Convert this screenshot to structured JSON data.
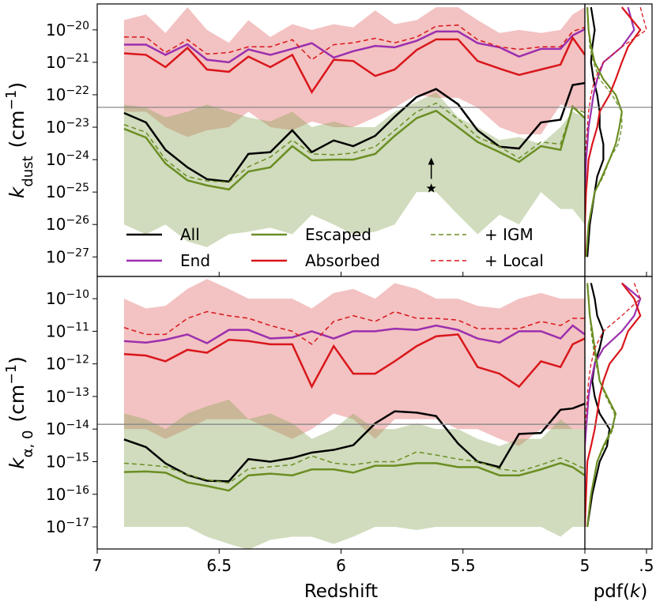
{
  "chart_data": {
    "type": "line",
    "x": [
      6.89,
      6.8,
      6.72,
      6.63,
      6.55,
      6.46,
      6.38,
      6.29,
      6.2,
      6.12,
      6.03,
      5.95,
      5.86,
      5.78,
      5.69,
      5.61,
      5.52,
      5.44,
      5.35,
      5.27,
      5.18,
      5.1,
      5.05,
      5.0
    ],
    "xlim": [
      7,
      5
    ],
    "xticks": [
      7,
      6.5,
      6,
      5.5,
      5
    ],
    "xlabel": "Redshift",
    "pdf_xlim": [
      0,
      0.545
    ],
    "pdf_xticks": [
      {
        "value": 0.5,
        "label": ".5"
      }
    ],
    "pdf_xlabel": "pdf(k)",
    "series": [
      {
        "name": "All",
        "color": "#000000",
        "dashed": false
      },
      {
        "name": "End",
        "color": "#9b2fae",
        "dashed": false
      },
      {
        "name": "Escaped",
        "color": "#6b8e23",
        "dashed": false
      },
      {
        "name": "Absorbed",
        "color": "#d9161b",
        "dashed": false
      },
      {
        "name": "+ IGM",
        "color": "#6b8e23",
        "dashed": true
      },
      {
        "name": "+ Local",
        "color": "#d9161b",
        "dashed": true
      }
    ],
    "bands": [
      {
        "color": "#e06666"
      },
      {
        "color": "#8aa85a"
      }
    ],
    "hline_color": "#888888",
    "panels": [
      {
        "ylabel": {
          "symbol": "k",
          "subscript": "dust",
          "unit": "(cm−1)"
        },
        "ylim": [
          2.5e-28,
          6.3e-20
        ],
        "yticks": [
          {
            "value": 1e-27,
            "label": "10−27"
          },
          {
            "value": 1e-26,
            "label": "10−26"
          },
          {
            "value": 1e-25,
            "label": "10−25"
          },
          {
            "value": 1e-24,
            "label": "10−24"
          },
          {
            "value": 1e-23,
            "label": "10−23"
          },
          {
            "value": 1e-22,
            "label": "10−22"
          },
          {
            "value": 1e-21,
            "label": "10−21"
          },
          {
            "value": 1e-20,
            "label": "10−20"
          }
        ],
        "hline": 4.1e-23,
        "limit_marker": {
          "x": 5.63,
          "y": 1.3e-25
        },
        "bands": [
          {
            "low": [
              3e-23,
              3e-23,
              1e-23,
              5e-24,
              8e-24,
              1e-23,
              3e-23,
              1e-23,
              8e-24,
              1.5e-23,
              1e-23,
              1e-23,
              2e-23,
              4e-23,
              1e-22,
              8e-23,
              8e-23,
              4e-23,
              1e-23,
              6e-24,
              6e-24,
              5e-23,
              4e-23,
              3e-23
            ],
            "high": [
              2e-20,
              3e-20,
              8e-21,
              5e-20,
              1e-20,
              4e-21,
              2e-20,
              6e-21,
              1.5e-20,
              1e-20,
              1.5e-20,
              1.2e-20,
              4e-20,
              1.5e-20,
              2e-20,
              5e-20,
              5e-20,
              2e-20,
              8e-21,
              1e-20,
              8e-21,
              1e-20,
              3e-20,
              5e-20
            ]
          },
          {
            "low": [
              1e-26,
              5e-27,
              1e-26,
              3e-27,
              2e-27,
              5e-27,
              6e-27,
              8e-27,
              5e-27,
              2e-26,
              1e-26,
              5e-27,
              6e-27,
              1e-26,
              1e-25,
              1e-25,
              2e-26,
              5e-27,
              2e-26,
              1e-26,
              1e-25,
              3e-26,
              3e-26,
              1e-26
            ],
            "high": [
              5e-23,
              4e-23,
              2e-23,
              3e-23,
              5e-23,
              3e-23,
              2e-23,
              1.5e-23,
              3e-23,
              1e-23,
              1.5e-23,
              1e-23,
              1e-23,
              3e-23,
              6e-23,
              1.2e-22,
              2e-23,
              1e-23,
              4e-24,
              5e-24,
              3e-24,
              1e-23,
              3e-23,
              2e-23
            ]
          }
        ],
        "pdf_k": [
          5e-20,
          1e-20,
          3e-21,
          1e-21,
          3e-22,
          1e-22,
          3e-23,
          1e-23,
          3e-24,
          1e-24,
          3e-25,
          1e-25,
          1e-26,
          1e-27
        ],
        "series": [
          {
            "values": [
              2.75e-23,
              1.4e-23,
              2e-24,
              5.8e-25,
              2.5e-25,
              2.1e-25,
              1.5e-24,
              1.7e-24,
              8e-24,
              1.7e-24,
              3.9e-24,
              2.6e-24,
              5.4e-24,
              2.1e-23,
              8.5e-23,
              1.5e-22,
              5.1e-23,
              8e-24,
              2.5e-24,
              2.2e-24,
              1.4e-23,
              1.7e-23,
              2e-22,
              2.3e-22
            ],
            "pdf": [
              0.05,
              0.08,
              0.06,
              0.05,
              0.07,
              0.1,
              0.12,
              0.12,
              0.15,
              0.15,
              0.1,
              0.08,
              0.04,
              0.02
            ]
          },
          {
            "values": [
              3.5e-21,
              3.5e-21,
              1.7e-21,
              3.6e-21,
              1.2e-21,
              1e-21,
              2.5e-21,
              1.7e-21,
              2.6e-21,
              3.9e-21,
              1.4e-21,
              2.2e-21,
              3.2e-21,
              2.9e-21,
              4.6e-21,
              8.9e-21,
              8.9e-21,
              3.9e-21,
              2.9e-21,
              1.5e-21,
              2.6e-21,
              2.6e-21,
              6.8e-21,
              1.05e-20
            ],
            "pdf": [
              0.35,
              0.4,
              0.3,
              0.15,
              0.1,
              0.07,
              0.05,
              0.03,
              0.02,
              0.01,
              0.005,
              0,
              0,
              0
            ]
          },
          {
            "values": [
              8.9e-24,
              4.8e-24,
              7.6e-25,
              2.3e-25,
              1.6e-25,
              1.2e-25,
              4.3e-25,
              5.8e-25,
              2.6e-24,
              9.5e-25,
              1e-24,
              1e-24,
              1.5e-24,
              5.4e-24,
              1.9e-23,
              3.2e-23,
              1e-23,
              3.5e-24,
              1.7e-24,
              8.5e-25,
              2.6e-24,
              2e-24,
              4.3e-23,
              1.9e-23
            ],
            "pdf": [
              0.02,
              0.03,
              0.05,
              0.08,
              0.15,
              0.25,
              0.3,
              0.28,
              0.25,
              0.2,
              0.14,
              0.08,
              0.03,
              0.01
            ]
          },
          {
            "values": [
              1.9e-21,
              1.7e-21,
              7.1e-22,
              2.8e-21,
              6e-22,
              5.1e-22,
              1.5e-21,
              7.1e-22,
              1.7e-21,
              1.2e-22,
              1.2e-21,
              1.1e-21,
              3.8e-22,
              6e-22,
              2.4e-21,
              5.1e-21,
              5.1e-21,
              1.1e-21,
              6.4e-22,
              4.1e-22,
              6e-22,
              8.5e-22,
              5.7e-21,
              1.7e-21
            ],
            "pdf": [
              0.3,
              0.45,
              0.35,
              0.3,
              0.25,
              0.2,
              0.12,
              0.1,
              0.06,
              0.03,
              0.02,
              0.01,
              0,
              0
            ]
          },
          {
            "values": [
              1.2e-23,
              7e-24,
              1e-24,
              3e-25,
              2.2e-25,
              2e-25,
              6e-25,
              1.2e-24,
              4e-24,
              1.5e-24,
              1.4e-24,
              1.6e-24,
              2.5e-24,
              8e-24,
              3e-23,
              5.5e-23,
              1.8e-23,
              5e-24,
              2.5e-24,
              1.1e-24,
              3.5e-24,
              3e-24,
              4e-23,
              2.8e-23
            ],
            "pdf": [
              0.02,
              0.03,
              0.04,
              0.07,
              0.12,
              0.22,
              0.3,
              0.3,
              0.27,
              0.2,
              0.15,
              0.08,
              0.03,
              0.01
            ]
          },
          {
            "values": [
              6e-21,
              6e-21,
              2e-21,
              5e-21,
              1.8e-21,
              2e-21,
              3e-21,
              3e-21,
              5e-21,
              1.2e-21,
              3.5e-21,
              4e-21,
              5.5e-21,
              4e-21,
              6e-21,
              1.3e-20,
              1.4e-20,
              5e-21,
              3e-21,
              2.5e-21,
              3e-21,
              3e-21,
              9e-21,
              1.2e-20
            ],
            "pdf": [
              0.45,
              0.5,
              0.3,
              0.15,
              0.08,
              0.05,
              0.03,
              0.02,
              0.01,
              0,
              0,
              0,
              0,
              0
            ]
          }
        ]
      },
      {
        "ylabel": {
          "symbol": "k",
          "subscript": "α, 0",
          "unit": "(cm−1)"
        },
        "ylim": [
          2.1e-18,
          4.8e-10
        ],
        "yticks": [
          {
            "value": 1e-17,
            "label": "10−17"
          },
          {
            "value": 1e-16,
            "label": "10−16"
          },
          {
            "value": 1e-15,
            "label": "10−15"
          },
          {
            "value": 1e-14,
            "label": "10−14"
          },
          {
            "value": 1e-13,
            "label": "10−13"
          },
          {
            "value": 1e-12,
            "label": "10−12"
          },
          {
            "value": 1e-11,
            "label": "10−11"
          },
          {
            "value": 1e-10,
            "label": "10−10"
          }
        ],
        "hline": 1.4e-14,
        "bands": [
          {
            "low": [
              1e-14,
              1e-14,
              5e-15,
              1e-14,
              2e-14,
              2e-14,
              2e-14,
              1e-14,
              5e-15,
              1e-14,
              3e-14,
              2e-14,
              5e-15,
              2e-14,
              2e-14,
              2e-14,
              1e-14,
              1e-14,
              5e-15,
              3e-15,
              1e-14,
              1e-14,
              1e-14,
              1e-14
            ],
            "high": [
              1e-10,
              5e-11,
              6e-11,
              2e-10,
              4e-10,
              2e-10,
              1e-10,
              1e-10,
              1e-10,
              5e-11,
              1.5e-10,
              2e-10,
              1e-10,
              3e-10,
              2e-10,
              1e-10,
              1e-10,
              6e-11,
              5e-11,
              1e-10,
              1.5e-10,
              1e-10,
              1e-10,
              1e-10
            ]
          },
          {
            "low": [
              1e-17,
              1e-17,
              1e-17,
              1e-17,
              5e-18,
              3e-18,
              2e-18,
              4e-18,
              5e-18,
              5e-18,
              3e-18,
              5e-18,
              1e-17,
              1e-17,
              8e-18,
              1e-17,
              1e-17,
              1e-17,
              1e-17,
              1e-17,
              1e-17,
              5e-18,
              1e-17,
              1e-17
            ],
            "high": [
              3e-14,
              2e-14,
              1e-14,
              3e-14,
              5e-14,
              8e-14,
              2e-14,
              3e-14,
              1.5e-14,
              5e-15,
              1e-14,
              3e-14,
              1e-14,
              1e-14,
              1.5e-14,
              1e-14,
              1e-14,
              5e-15,
              3e-15,
              5e-15,
              5e-15,
              2e-14,
              1e-14,
              1e-14
            ]
          }
        ],
        "pdf_k": [
          3e-10,
          1e-10,
          3e-11,
          1e-11,
          3e-12,
          1e-12,
          3e-13,
          1e-13,
          3e-14,
          1e-14,
          3e-15,
          1e-15,
          1e-16,
          1e-17
        ],
        "series": [
          {
            "values": [
              4.8e-15,
              2.8e-15,
              8.9e-16,
              3.9e-16,
              2.6e-16,
              2.5e-16,
              1.2e-15,
              1e-15,
              1.3e-15,
              1.9e-15,
              2.3e-15,
              3.2e-15,
              1.5e-14,
              3.5e-14,
              3.2e-14,
              2.5e-14,
              3.6e-15,
              1e-15,
              6.8e-16,
              7.1e-15,
              7.6e-15,
              3.9e-14,
              4.3e-14,
              6e-14
            ],
            "pdf": [
              0.05,
              0.08,
              0.1,
              0.15,
              0.12,
              0.08,
              0.06,
              0.08,
              0.12,
              0.2,
              0.18,
              0.12,
              0.06,
              0.02
            ]
          },
          {
            "values": [
              5e-12,
              4.5e-12,
              5.5e-12,
              8e-12,
              4.3e-12,
              1.1e-11,
              1.1e-11,
              6e-12,
              6.5e-12,
              1e-11,
              6e-12,
              1e-11,
              1e-11,
              1.2e-11,
              1.1e-11,
              1.5e-11,
              1.1e-11,
              6e-12,
              4.5e-12,
              1e-11,
              1e-11,
              6e-12,
              1.5e-11,
              8e-12
            ],
            "pdf": [
              0.3,
              0.45,
              0.4,
              0.3,
              0.15,
              0.08,
              0.05,
              0.03,
              0.02,
              0.01,
              0,
              0,
              0,
              0
            ]
          },
          {
            "values": [
              4.8e-16,
              5e-16,
              4.6e-16,
              2.3e-16,
              1.8e-16,
              1.3e-16,
              3.8e-16,
              4.3e-16,
              3.8e-16,
              5.8e-16,
              5.8e-16,
              4.6e-16,
              7.5e-16,
              7.5e-16,
              9e-16,
              9e-16,
              6.8e-16,
              6.8e-16,
              3.8e-16,
              3.8e-16,
              5.8e-16,
              9e-16,
              6.8e-16,
              3.8e-16
            ],
            "pdf": [
              0.02,
              0.03,
              0.04,
              0.06,
              0.08,
              0.1,
              0.12,
              0.18,
              0.25,
              0.22,
              0.15,
              0.1,
              0.05,
              0.02
            ]
          },
          {
            "values": [
              2e-12,
              1.8e-12,
              1.2e-12,
              2.7e-12,
              2.2e-12,
              5.5e-12,
              5e-12,
              4e-12,
              4e-12,
              2e-13,
              3.5e-12,
              5e-13,
              5e-13,
              1.2e-12,
              3.5e-12,
              7e-12,
              8e-12,
              8e-13,
              5e-13,
              2e-13,
              1.2e-12,
              8e-13,
              4e-12,
              6e-12
            ],
            "pdf": [
              0.3,
              0.4,
              0.45,
              0.35,
              0.3,
              0.2,
              0.15,
              0.12,
              0.1,
              0.08,
              0.05,
              0.02,
              0.01,
              0
            ]
          },
          {
            "values": [
              9e-16,
              8e-16,
              7e-16,
              4e-16,
              2.8e-16,
              2.2e-16,
              6e-16,
              7e-16,
              8e-16,
              1.5e-15,
              9e-16,
              8e-16,
              1e-15,
              1e-15,
              2e-15,
              1.6e-15,
              1.2e-15,
              1e-15,
              6e-16,
              5e-16,
              8e-16,
              1.3e-15,
              9e-16,
              6e-16
            ],
            "pdf": [
              0.02,
              0.03,
              0.04,
              0.05,
              0.07,
              0.09,
              0.12,
              0.17,
              0.24,
              0.23,
              0.16,
              0.1,
              0.05,
              0.02
            ]
          },
          {
            "values": [
              1.3e-11,
              8e-12,
              8e-12,
              2.5e-11,
              4e-11,
              3e-11,
              2.5e-11,
              1.5e-11,
              1e-11,
              4e-12,
              2e-11,
              3e-11,
              2e-11,
              4e-11,
              2.5e-11,
              2.5e-11,
              2.2e-11,
              1.2e-11,
              1.2e-11,
              1.2e-11,
              2e-11,
              1.5e-11,
              2.5e-11,
              2.5e-11
            ],
            "pdf": [
              0.4,
              0.45,
              0.3,
              0.15,
              0.08,
              0.05,
              0.03,
              0.02,
              0.01,
              0,
              0,
              0,
              0,
              0
            ]
          }
        ]
      }
    ]
  }
}
